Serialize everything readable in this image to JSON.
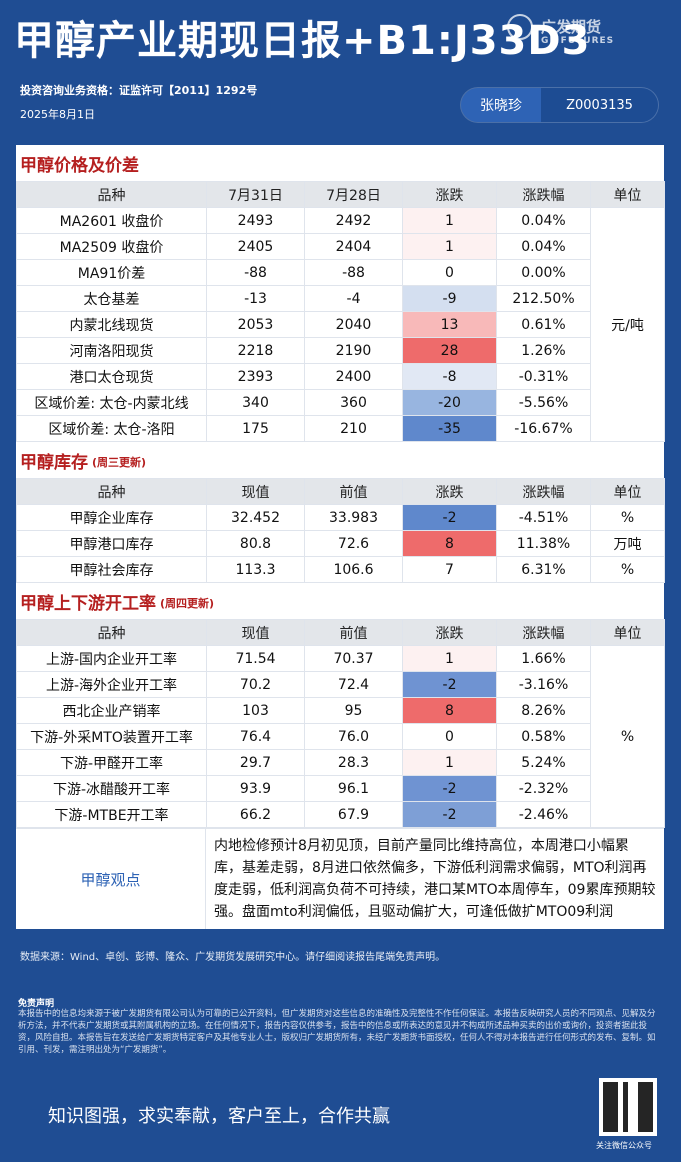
{
  "header": {
    "title": "甲醇产业期现日报+B1:J33D3",
    "logo_cn": "广发期货",
    "logo_en": "GF FUTURES",
    "license": "投资咨询业务资格：证监许可【2011】1292号",
    "date": "2025年8月1日",
    "author_name": "张晓珍",
    "author_id": "Z0003135"
  },
  "price": {
    "title": "甲醇价格及价差",
    "headers": [
      "品种",
      "7月31日",
      "7月28日",
      "涨跌",
      "涨跌幅",
      "单位"
    ],
    "unit": "元/吨",
    "rows": [
      [
        "MA2601 收盘价",
        "2493",
        "2492",
        "1",
        "0.04%"
      ],
      [
        "MA2509 收盘价",
        "2405",
        "2404",
        "1",
        "0.04%"
      ],
      [
        "MA91价差",
        "-88",
        "-88",
        "0",
        "0.00%"
      ],
      [
        "太仓基差",
        "-13",
        "-4",
        "-9",
        "212.50%"
      ],
      [
        "内蒙北线现货",
        "2053",
        "2040",
        "13",
        "0.61%"
      ],
      [
        "河南洛阳现货",
        "2218",
        "2190",
        "28",
        "1.26%"
      ],
      [
        "港口太仓现货",
        "2393",
        "2400",
        "-8",
        "-0.31%"
      ],
      [
        "区域价差: 太仓-内蒙北线",
        "340",
        "360",
        "-20",
        "-5.56%"
      ],
      [
        "区域价差: 太仓-洛阳",
        "175",
        "210",
        "-35",
        "-16.67%"
      ]
    ],
    "change_colors": [
      "#fdf1f1",
      "#fdf1f1",
      "#ffffff",
      "#d4dff0",
      "#f8b9b9",
      "#ee6b6b",
      "#e1e8f4",
      "#98b5e0",
      "#5f88cc"
    ]
  },
  "inventory": {
    "title": "甲醇库存",
    "note": "(周三更新)",
    "headers": [
      "品种",
      "现值",
      "前值",
      "涨跌",
      "涨跌幅",
      "单位"
    ],
    "rows": [
      [
        "甲醇企业库存",
        "32.452",
        "33.983",
        "-2",
        "-4.51%",
        "%"
      ],
      [
        "甲醇港口库存",
        "80.8",
        "72.6",
        "8",
        "11.38%",
        "万吨"
      ],
      [
        "甲醇社会库存",
        "113.3",
        "106.6",
        "7",
        "6.31%",
        "%"
      ]
    ],
    "change_colors": [
      "#5f88cc",
      "#ee6b6b",
      "#ffffff"
    ]
  },
  "operating": {
    "title": "甲醇上下游开工率",
    "note": "(周四更新)",
    "headers": [
      "品种",
      "现值",
      "前值",
      "涨跌",
      "涨跌幅",
      "单位"
    ],
    "unit": "%",
    "rows": [
      [
        "上游-国内企业开工率",
        "71.54",
        "70.37",
        "1",
        "1.66%"
      ],
      [
        "上游-海外企业开工率",
        "70.2",
        "72.4",
        "-2",
        "-3.16%"
      ],
      [
        "西北企业产销率",
        "103",
        "95",
        "8",
        "8.26%"
      ],
      [
        "下游-外采MTO装置开工率",
        "76.4",
        "76.0",
        "0",
        "0.58%"
      ],
      [
        "下游-甲醛开工率",
        "29.7",
        "28.3",
        "1",
        "5.24%"
      ],
      [
        "下游-冰醋酸开工率",
        "93.9",
        "96.1",
        "-2",
        "-2.32%"
      ],
      [
        "下游-MTBE开工率",
        "66.2",
        "67.9",
        "-2",
        "-2.46%"
      ]
    ],
    "change_colors": [
      "#fdf1f1",
      "#6f93d2",
      "#ee6b6b",
      "#ffffff",
      "#fdf1f1",
      "#6f93d2",
      "#7e9fd6"
    ]
  },
  "view": {
    "label": "甲醇观点",
    "text": "内地检修预计8月初见顶，目前产量同比维持高位，本周港口小幅累库，基差走弱，8月进口依然偏多，下游低利润需求偏弱，MTO利润再度走弱，低利润高负荷不可持续，港口某MTO本周停车，09累库预期较强。盘面mto利润偏低，且驱动偏扩大，可逢低做扩MTO09利润"
  },
  "footer": {
    "source": "数据来源：Wind、卓创、彭博、隆众、广发期货发展研究中心。请仔细阅读报告尾端免责声明。",
    "disclaimer_title": "免责声明",
    "disclaimer": "本报告中的信息均来源于被广发期货有限公司认为可靠的已公开资料，但广发期货对这些信息的准确性及完整性不作任何保证。本报告反映研究人员的不同观点、见解及分析方法，并不代表广发期货或其附属机构的立场。在任何情况下，报告内容仅供参考，报告中的信息或所表达的意见并不构成所述品种买卖的出价或询价，投资者据此投资，风险自担。本报告旨在发送给广发期货特定客户及其他专业人士，版权归广发期货所有，未经广发期货书面授权，任何人不得对本报告进行任何形式的发布、复制。如引用、刊发，需注明出处为“广发期货”。",
    "slogan": "知识图强，求实奉献，客户至上，合作共赢",
    "qr_caption": "关注微信公众号"
  }
}
